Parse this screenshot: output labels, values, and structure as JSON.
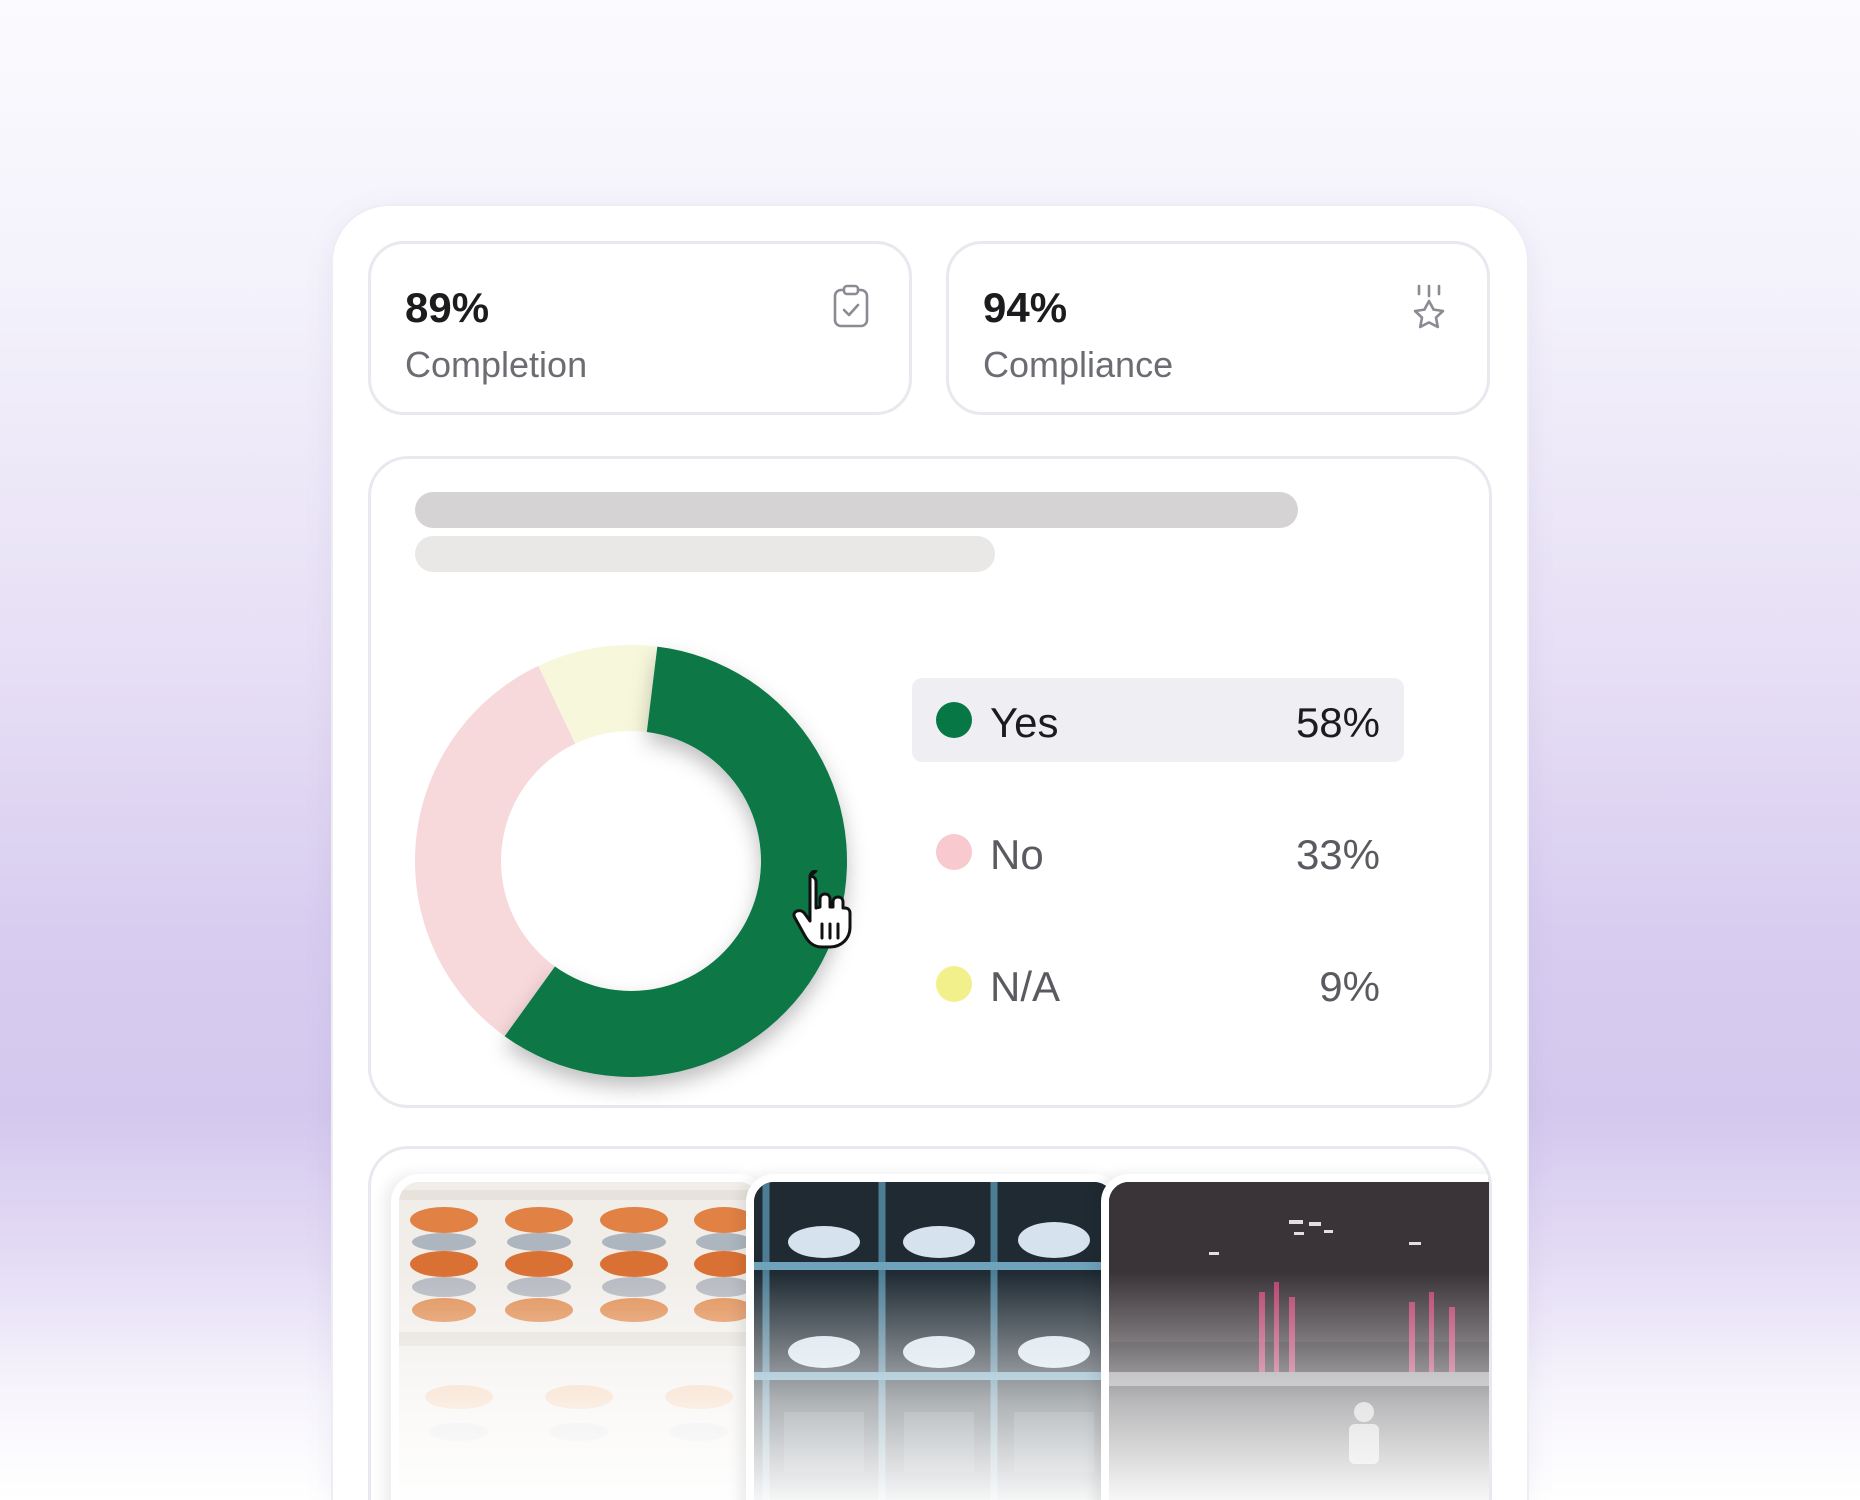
{
  "stats": [
    {
      "value": "89%",
      "label": "Completion",
      "icon": "clipboard-check-icon"
    },
    {
      "value": "94%",
      "label": "Compliance",
      "icon": "award-star-icon"
    }
  ],
  "colors": {
    "yes": "#077745",
    "no": "#f7d8db",
    "na": "#f7f7dc",
    "na_dot": "#f2f08a",
    "no_dot": "#f8c9ce"
  },
  "chart_data": {
    "type": "pie",
    "categories": [
      "Yes",
      "No",
      "N/A"
    ],
    "values": [
      58,
      33,
      9
    ],
    "labels": [
      "58%",
      "33%",
      "9%"
    ],
    "legend": "right"
  }
}
